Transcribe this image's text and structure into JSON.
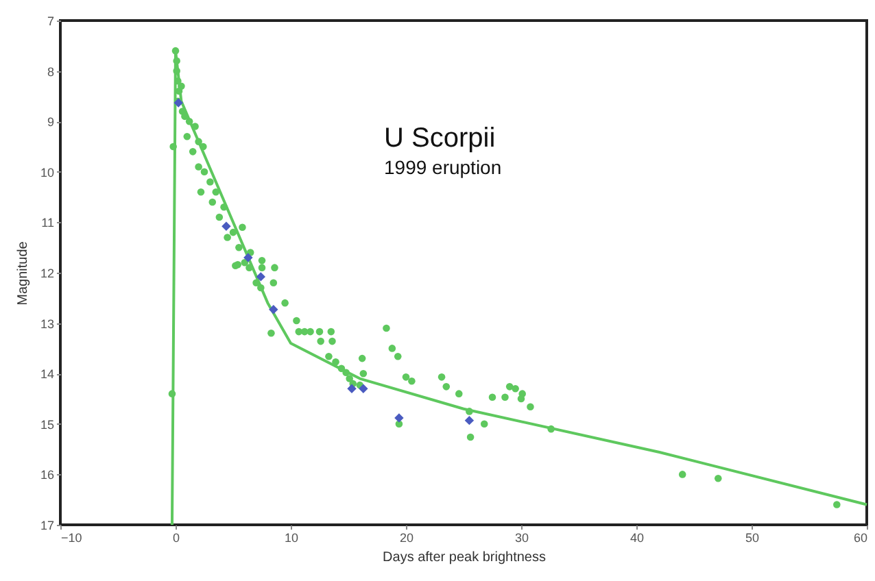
{
  "chart_data": {
    "type": "scatter",
    "xlabel": "Days after peak brightness",
    "ylabel": "Magnitude",
    "annotations": [
      "U Scorpii",
      "1999 eruption"
    ],
    "xlim": [
      -10,
      60
    ],
    "xticks": [
      -10,
      0,
      10,
      20,
      30,
      40,
      50,
      60
    ],
    "ylim": [
      17,
      7
    ],
    "yticks": [
      7,
      8,
      9,
      10,
      11,
      12,
      13,
      14,
      15,
      16,
      17
    ],
    "grid": false,
    "series": [
      {
        "type": "line",
        "color": "#5ec85e",
        "line_style": "solid",
        "x": [
          -0.3,
          0,
          0.5,
          8,
          10,
          16,
          25,
          42,
          60
        ],
        "values": [
          17,
          7.6,
          8.6,
          12.6,
          13.4,
          14.1,
          14.7,
          15.56,
          16.6
        ]
      },
      {
        "type": "scatter",
        "color": "#5ec85e",
        "marker": "circle",
        "x": [
          0,
          0.1,
          0.1,
          0.2,
          0.3,
          0.2,
          0.5,
          0.6,
          0.8,
          1.2,
          1.0,
          -0.2,
          -0.3,
          1.7,
          2.0,
          2.4,
          1.5,
          2.0,
          2.5,
          3.0,
          2.2,
          3.2,
          3.5,
          3.8,
          4.2,
          4.5,
          5.0,
          5.5,
          5.8,
          6.0,
          6.5,
          7.0,
          7.5,
          5.4,
          7.5,
          8.6,
          5.2,
          6.4,
          7.4,
          8.5,
          9.5,
          8.3,
          10.5,
          10.7,
          11.2,
          11.7,
          12.5,
          13.5,
          12.6,
          13.6,
          13.3,
          13.9,
          14.4,
          14.8,
          15.1,
          15.4,
          16.0,
          16.2,
          16.3,
          18.3,
          18.8,
          19.3,
          20.0,
          20.5,
          19.4,
          23.1,
          23.5,
          24.6,
          25.5,
          25.6,
          26.8,
          27.5,
          28.6,
          29.0,
          29.5,
          30.1,
          30.0,
          30.8,
          32.6,
          44.0,
          47.1,
          57.4
        ],
        "values": [
          7.6,
          7.8,
          8.0,
          8.2,
          8.4,
          8.6,
          8.3,
          8.8,
          8.9,
          9.0,
          9.3,
          9.5,
          14.4,
          9.1,
          9.4,
          9.5,
          9.6,
          9.9,
          10.0,
          10.2,
          10.4,
          10.6,
          10.4,
          10.9,
          10.7,
          11.3,
          11.2,
          11.5,
          11.1,
          11.8,
          11.6,
          12.2,
          11.9,
          11.84,
          11.76,
          11.9,
          11.86,
          11.9,
          12.3,
          12.2,
          12.6,
          13.2,
          12.95,
          13.17,
          13.17,
          13.17,
          13.17,
          13.17,
          13.36,
          13.36,
          13.66,
          13.77,
          13.9,
          13.98,
          14.1,
          14.2,
          14.23,
          13.7,
          14.0,
          13.1,
          13.5,
          13.66,
          14.07,
          14.15,
          15.0,
          14.07,
          14.26,
          14.4,
          14.75,
          15.26,
          15.0,
          14.47,
          14.47,
          14.26,
          14.3,
          14.4,
          14.5,
          14.66,
          15.1,
          16.0,
          16.08,
          16.6
        ]
      },
      {
        "type": "scatter",
        "color": "#4a5bc0",
        "marker": "diamond",
        "x": [
          0.25,
          4.4,
          6.3,
          7.4,
          8.5,
          15.3,
          16.3,
          19.4,
          25.5
        ],
        "values": [
          8.63,
          11.08,
          11.7,
          12.08,
          12.73,
          14.3,
          14.3,
          14.88,
          14.93
        ]
      }
    ]
  }
}
